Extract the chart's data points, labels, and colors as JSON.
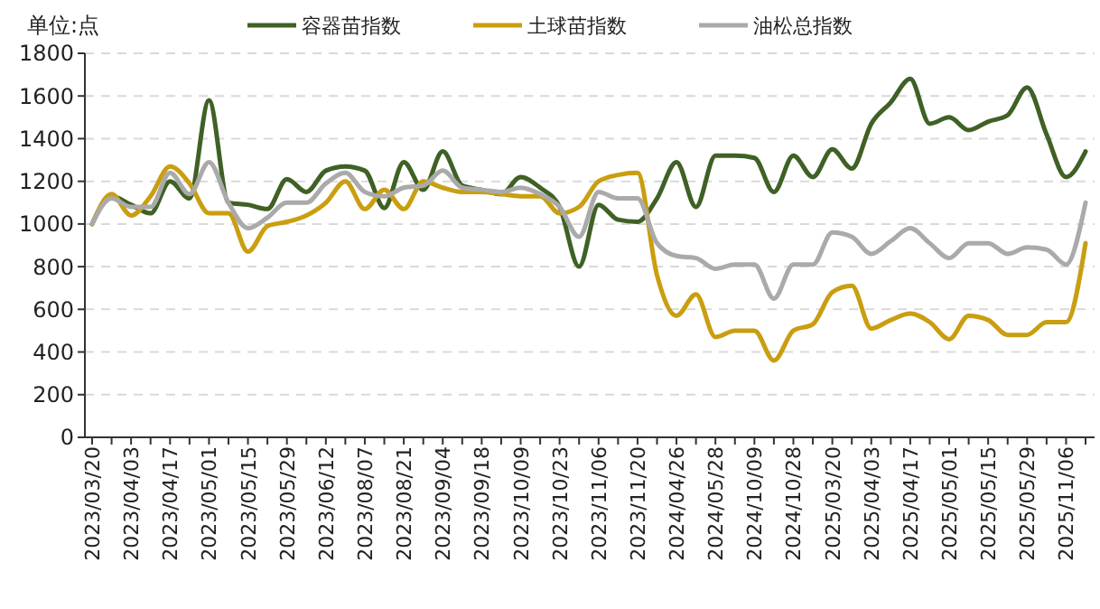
{
  "chart_data": {
    "type": "line",
    "ylabel": "单位:点",
    "categories": [
      "2023/03/20",
      null,
      "2023/04/03",
      null,
      "2023/04/17",
      null,
      "2023/05/01",
      null,
      "2023/05/15",
      null,
      "2023/05/29",
      null,
      "2023/06/12",
      null,
      "2023/08/07",
      null,
      "2023/08/21",
      null,
      "2023/09/04",
      null,
      "2023/09/18",
      null,
      "2023/10/09",
      null,
      "2023/10/23",
      null,
      "2023/11/06",
      null,
      "2023/11/20",
      null,
      "2024/04/26",
      null,
      "2024/05/28",
      null,
      "2024/10/09",
      null,
      "2024/10/28",
      null,
      "2025/03/20",
      null,
      "2025/04/03",
      null,
      "2025/04/17",
      null,
      "2025/05/01",
      null,
      "2025/05/15",
      null,
      "2025/05/29",
      null,
      "2025/11/06",
      null
    ],
    "series": [
      {
        "name": "容器苗指数",
        "color": "#3f6125",
        "values": [
          1000,
          1130,
          1090,
          1050,
          1200,
          1120,
          1580,
          1100,
          1090,
          1070,
          1210,
          1150,
          1250,
          1270,
          1250,
          1075,
          1290,
          1160,
          1340,
          1180,
          1160,
          1140,
          1220,
          1170,
          1080,
          800,
          1090,
          1020,
          1010,
          1120,
          1290,
          1080,
          1320,
          1320,
          1310,
          1150,
          1320,
          1220,
          1350,
          1260,
          1470,
          1570,
          1680,
          1470,
          1500,
          1440,
          1480,
          1510,
          1640,
          1420,
          1220,
          1340
        ]
      },
      {
        "name": "土球苗指数",
        "color": "#c99e10",
        "values": [
          1000,
          1140,
          1040,
          1130,
          1270,
          1190,
          1050,
          1050,
          870,
          990,
          1010,
          1040,
          1100,
          1200,
          1070,
          1160,
          1070,
          1200,
          1170,
          1150,
          1150,
          1140,
          1130,
          1130,
          1050,
          1080,
          1200,
          1230,
          1240,
          760,
          570,
          670,
          470,
          500,
          500,
          360,
          500,
          530,
          680,
          710,
          510,
          550,
          580,
          540,
          460,
          570,
          550,
          480,
          480,
          540,
          540,
          910
        ]
      },
      {
        "name": "油松总指数",
        "color": "#aaaaaa",
        "values": [
          1000,
          1120,
          1080,
          1080,
          1240,
          1140,
          1290,
          1100,
          980,
          1030,
          1100,
          1100,
          1190,
          1240,
          1150,
          1130,
          1170,
          1180,
          1250,
          1170,
          1160,
          1150,
          1170,
          1140,
          1080,
          940,
          1150,
          1120,
          1120,
          910,
          850,
          840,
          790,
          810,
          810,
          650,
          810,
          810,
          960,
          940,
          860,
          920,
          980,
          910,
          840,
          910,
          910,
          860,
          890,
          880,
          810,
          1100
        ]
      }
    ],
    "ylim": [
      0,
      1800
    ],
    "yticks": [
      0,
      200,
      400,
      600,
      800,
      1000,
      1200,
      1400,
      1600,
      1800
    ],
    "grid": "y",
    "legend": "top",
    "marker": "none",
    "line_style": "solid"
  }
}
